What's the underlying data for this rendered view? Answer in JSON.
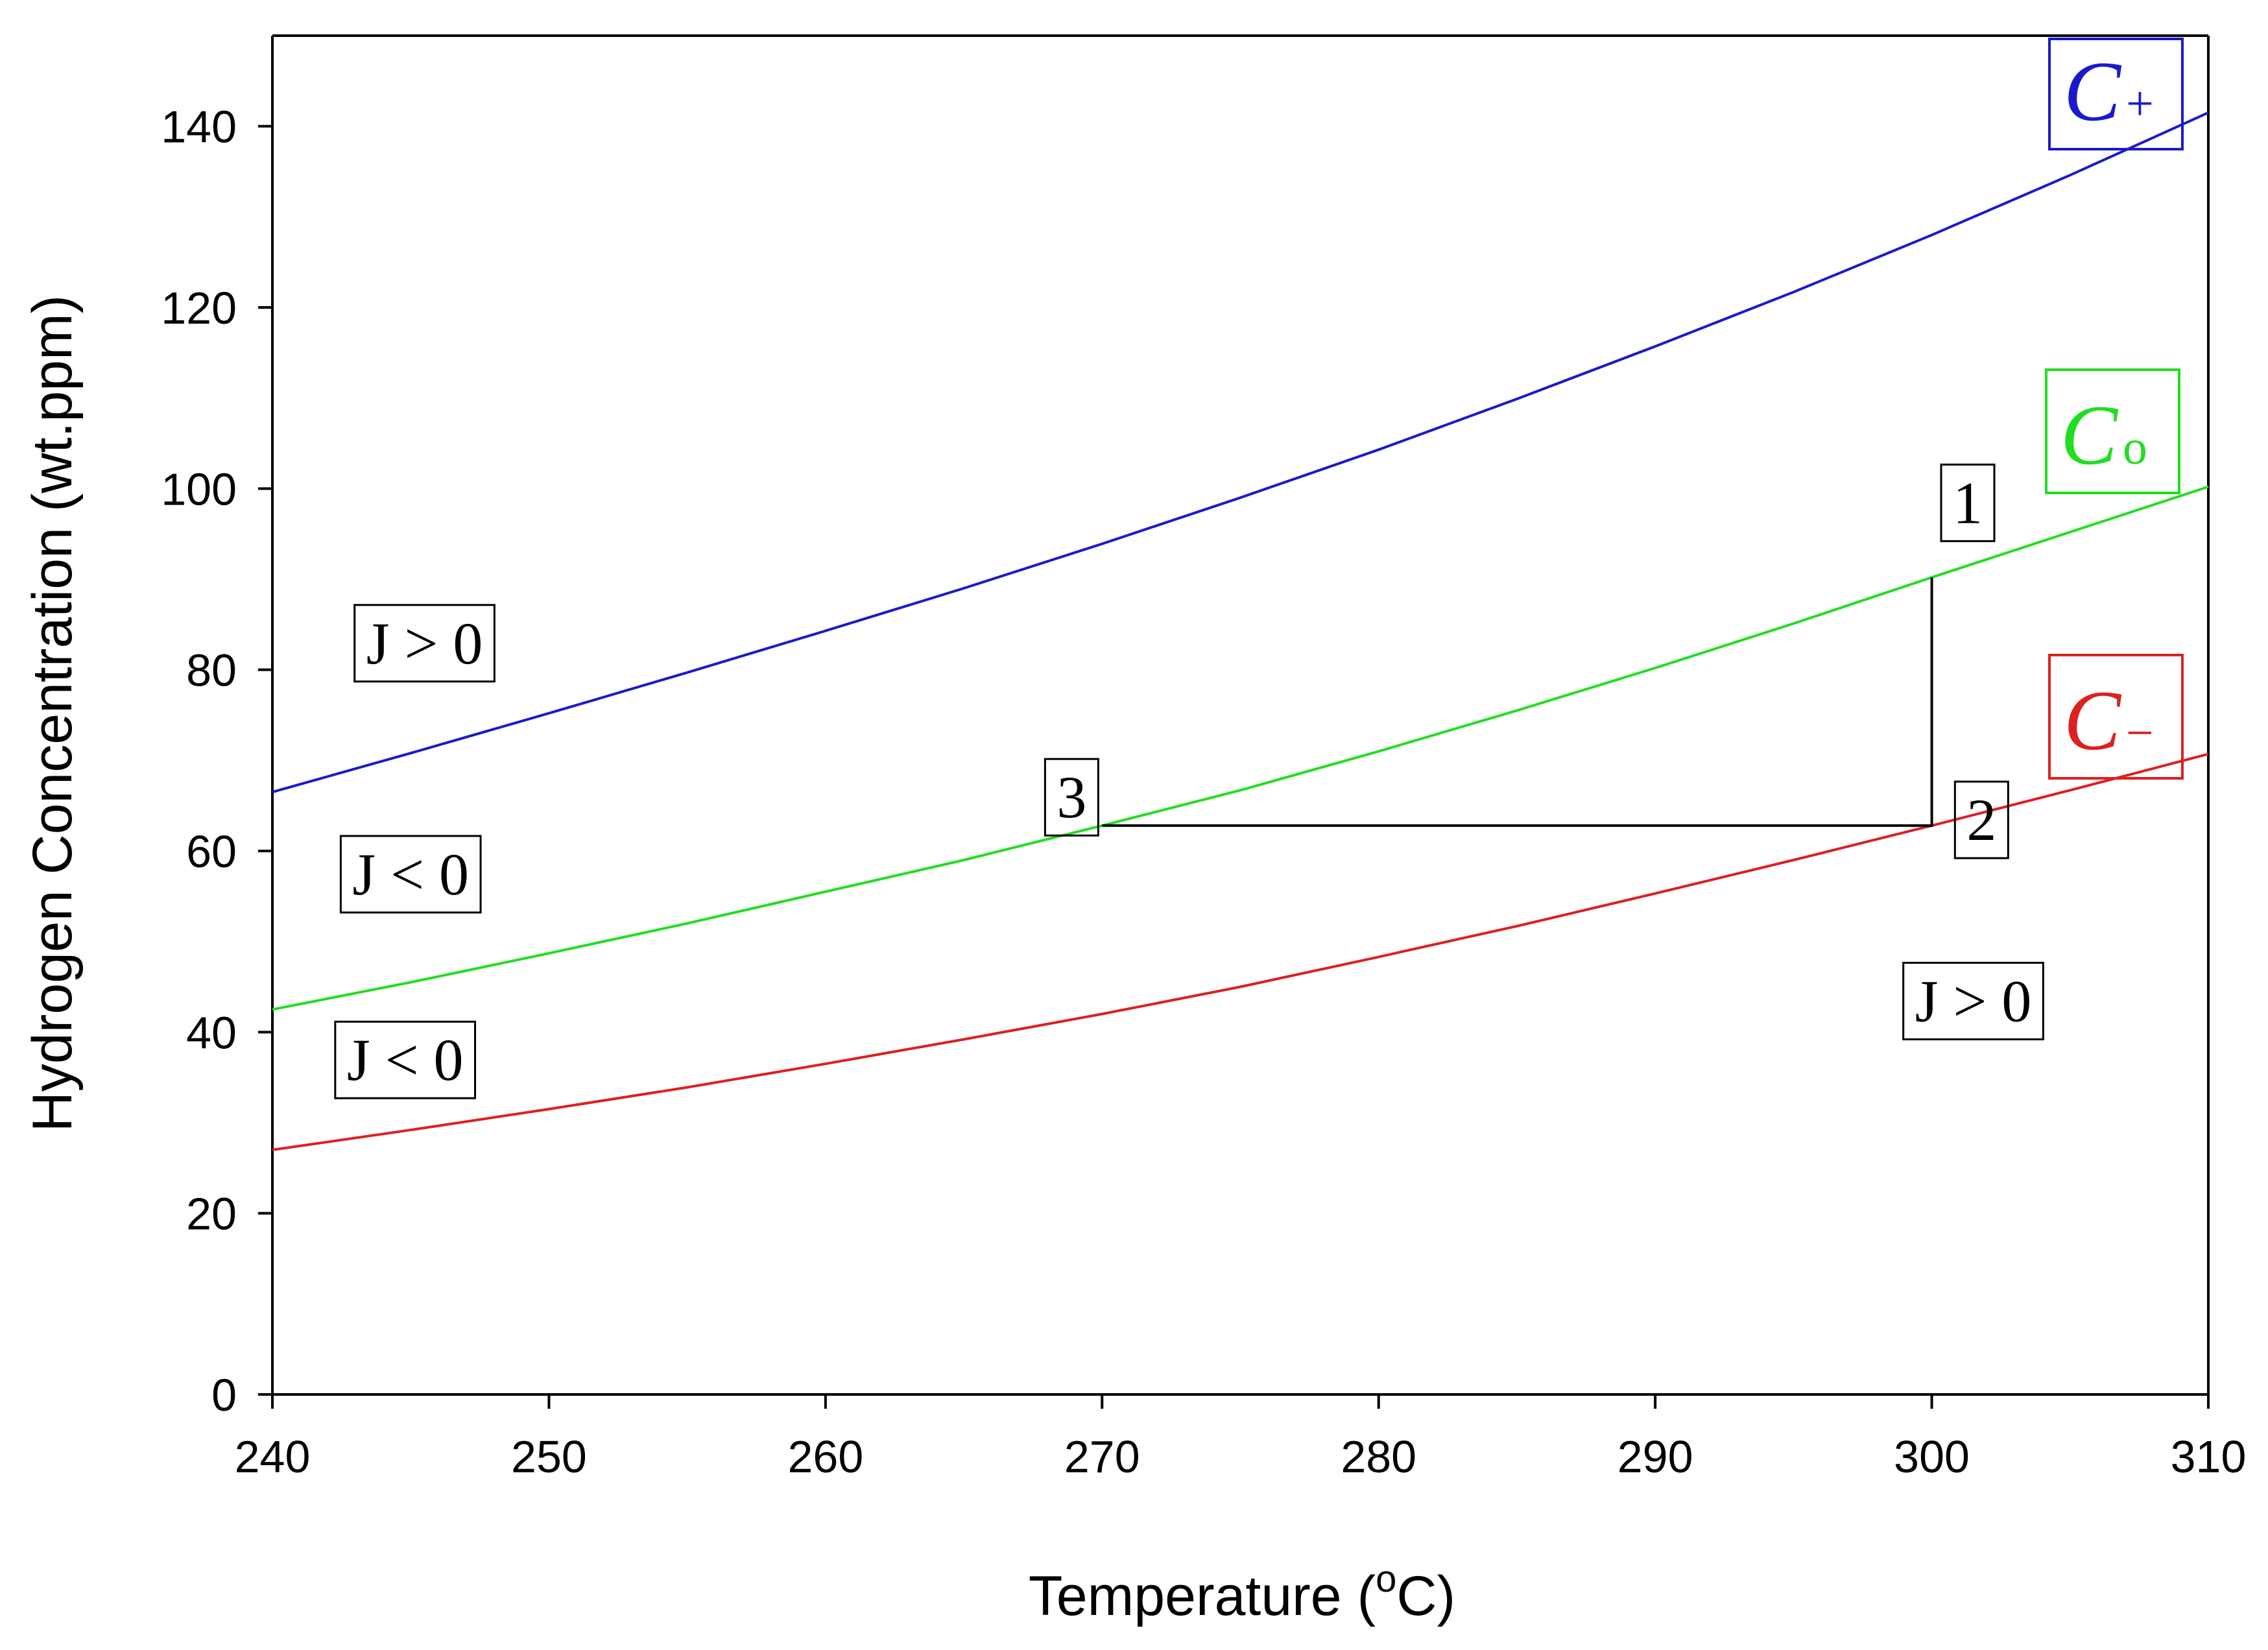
{
  "chart_data": {
    "type": "line",
    "xlabel": "Temperature (",
    "xlabel_sup": "o",
    "xlabel_tail": "C)",
    "ylabel": "Hydrogen Concentration (wt.ppm)",
    "xlim": [
      240,
      310
    ],
    "ylim": [
      0,
      150
    ],
    "x_ticks": [
      240,
      250,
      260,
      270,
      280,
      290,
      300,
      310
    ],
    "y_ticks": [
      0,
      20,
      40,
      60,
      80,
      100,
      120,
      140
    ],
    "series": [
      {
        "name": "C+",
        "main": "C",
        "sub": "+",
        "color": "#1a1acc",
        "x": [
          240,
          245,
          250,
          255,
          260,
          265,
          270,
          275,
          280,
          285,
          290,
          295,
          300,
          305,
          310
        ],
        "y": [
          66.5,
          70.8,
          75.2,
          79.7,
          84.3,
          89.0,
          93.9,
          99.0,
          104.3,
          109.9,
          115.7,
          121.7,
          128.0,
          134.6,
          141.5
        ]
      },
      {
        "name": "Co",
        "main": "C",
        "sub": "o",
        "color": "#22dd22",
        "x": [
          240,
          245,
          250,
          255,
          260,
          265,
          270,
          275,
          280,
          285,
          290,
          295,
          300,
          305,
          310
        ],
        "y": [
          42.5,
          45.5,
          48.7,
          52.0,
          55.5,
          59.0,
          62.8,
          66.7,
          71.0,
          75.5,
          80.2,
          85.1,
          90.2,
          95.2,
          100.2
        ]
      },
      {
        "name": "C-",
        "main": "C",
        "sub": "−",
        "color": "#dd2020",
        "x": [
          240,
          245,
          250,
          255,
          260,
          265,
          270,
          275,
          280,
          285,
          290,
          295,
          300,
          305,
          310
        ],
        "y": [
          27.0,
          29.2,
          31.5,
          33.9,
          36.5,
          39.2,
          42.0,
          45.0,
          48.3,
          51.7,
          55.3,
          59.0,
          62.8,
          66.7,
          70.7
        ]
      }
    ],
    "path_line": {
      "x": [
        300,
        300,
        270
      ],
      "y": [
        90.2,
        62.8,
        62.8
      ],
      "color": "#000000"
    },
    "annotations": [
      {
        "text": "J > 0",
        "x": 245.5,
        "y": 83.0
      },
      {
        "text": "J < 0",
        "x": 245.0,
        "y": 57.5
      },
      {
        "text": "J < 0",
        "x": 244.8,
        "y": 37.0
      },
      {
        "text": "J > 0",
        "x": 301.5,
        "y": 43.5
      },
      {
        "text": "1",
        "x": 301.3,
        "y": 98.5
      },
      {
        "text": "2",
        "x": 301.8,
        "y": 63.5
      },
      {
        "text": "3",
        "x": 268.9,
        "y": 66.0
      }
    ]
  }
}
